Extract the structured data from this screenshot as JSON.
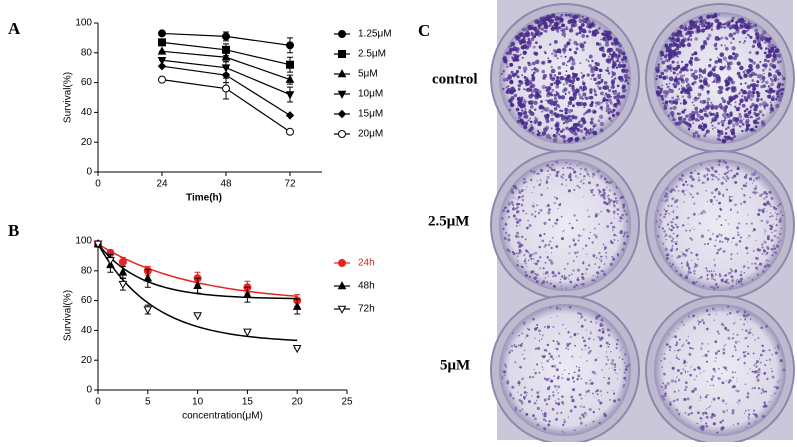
{
  "chart_data": [
    {
      "type": "line",
      "label": "A",
      "ylabel": "Survival(%)",
      "xlabel": "Time(h)",
      "x": [
        24,
        48,
        72
      ],
      "xlim": [
        0,
        84
      ],
      "xticks": [
        0,
        24,
        48,
        72
      ],
      "ylim": [
        0,
        100
      ],
      "yticks": [
        0,
        20,
        40,
        60,
        80,
        100
      ],
      "series": [
        {
          "name": "1.25μM",
          "color": "#000000",
          "marker": "circle",
          "values": [
            93,
            91,
            85
          ],
          "errors": [
            0,
            3,
            5
          ]
        },
        {
          "name": "2.5μM",
          "color": "#000000",
          "marker": "square",
          "values": [
            87,
            82,
            72
          ],
          "errors": [
            0,
            4,
            5
          ]
        },
        {
          "name": "5μM",
          "color": "#000000",
          "marker": "triangle",
          "values": [
            81,
            77,
            62
          ],
          "errors": [
            0,
            3,
            3
          ]
        },
        {
          "name": "10μM",
          "color": "#000000",
          "marker": "triangle-down",
          "values": [
            75,
            70,
            52
          ],
          "errors": [
            0,
            4,
            5
          ]
        },
        {
          "name": "15μM",
          "color": "#000000",
          "marker": "diamond",
          "values": [
            71,
            65,
            38
          ],
          "errors": [
            0,
            5,
            0
          ]
        },
        {
          "name": "20μM",
          "color": "#000000",
          "marker": "circle-open",
          "values": [
            62,
            56,
            27
          ],
          "errors": [
            0,
            7,
            0
          ]
        }
      ]
    },
    {
      "type": "scatter",
      "label": "B",
      "ylabel": "Survival(%)",
      "xlabel": "concentration(μM)",
      "x": [
        0,
        1.25,
        2.5,
        5,
        10,
        15,
        20
      ],
      "xlim": [
        0,
        25
      ],
      "xticks": [
        0,
        5,
        10,
        15,
        20,
        25
      ],
      "ylim": [
        0,
        100
      ],
      "yticks": [
        0,
        20,
        40,
        60,
        80,
        100
      ],
      "series": [
        {
          "name": "24h",
          "color": "#e8231f",
          "marker": "circle",
          "values": [
            98,
            92,
            86,
            80,
            75,
            69,
            60
          ],
          "errors": [
            2,
            2,
            3,
            3,
            4,
            4,
            4
          ]
        },
        {
          "name": "48h",
          "color": "#000000",
          "marker": "triangle",
          "values": [
            98,
            84,
            79,
            75,
            70,
            64,
            56
          ],
          "errors": [
            2,
            5,
            4,
            6,
            5,
            5,
            5
          ]
        },
        {
          "name": "72h",
          "color": "#000000",
          "marker": "triangle-open-down",
          "values": [
            98,
            87,
            71,
            54,
            50,
            39,
            28
          ],
          "errors": [
            2,
            4,
            4,
            3,
            0,
            0,
            0
          ]
        }
      ]
    }
  ],
  "photo": {
    "label": "C",
    "rows": [
      "control",
      "2.5μM",
      "5μM"
    ]
  }
}
